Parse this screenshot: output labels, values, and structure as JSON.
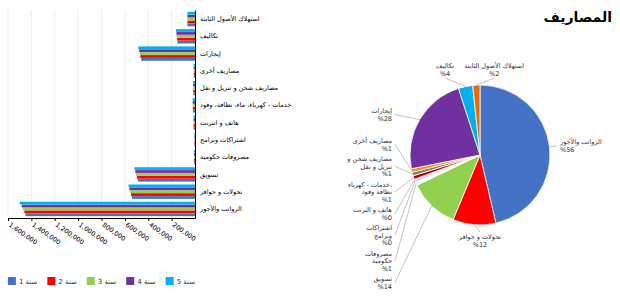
{
  "chart_data": [
    {
      "type": "bar",
      "orientation": "horizontal",
      "categories": [
        "الرواتب والأجور",
        "تحولات و حوافز",
        "تسويق",
        "مصروفات حكومية",
        "اشتراكات وبرامج",
        "هاتف و انترنت",
        "خدمات - كهرباء، ماء، نظافة، وقود",
        "مصاريف شحن و تنزيل و نقل",
        "مصاريف أخرى",
        "إيجارات",
        "تكاليف",
        "استهلاك الأصول الثابتة"
      ],
      "series": [
        {
          "name": "سنة 1",
          "color": "#4472c4",
          "values": [
            1450000,
            540000,
            490000,
            7500,
            4500,
            12000,
            18000,
            14000,
            10000,
            460000,
            150000,
            65000
          ]
        },
        {
          "name": "سنة 2",
          "color": "#ff0000",
          "values": [
            1460000,
            548000,
            497000,
            7700,
            4600,
            12200,
            18500,
            14500,
            10500,
            467000,
            153000,
            65000
          ]
        },
        {
          "name": "سنة 3",
          "color": "#92d050",
          "values": [
            1472000,
            556000,
            504000,
            7900,
            4700,
            12400,
            19000,
            15000,
            11000,
            473000,
            156000,
            65000
          ]
        },
        {
          "name": "سنة 4",
          "color": "#7030a0",
          "values": [
            1483000,
            562000,
            511000,
            8100,
            4800,
            12600,
            19500,
            15500,
            11500,
            478000,
            159000,
            65000
          ]
        },
        {
          "name": "سنة 5",
          "color": "#00b0f0",
          "values": [
            1500000,
            568000,
            518000,
            8300,
            4900,
            12800,
            20000,
            16000,
            12000,
            485000,
            162000,
            65000
          ]
        }
      ],
      "xlim": [
        0,
        1600000
      ],
      "xticks": [
        {
          "value": 1600000,
          "label": "1,600,000"
        },
        {
          "value": 1400000,
          "label": "1,400,000"
        },
        {
          "value": 1200000,
          "label": "1,200,000"
        },
        {
          "value": 1000000,
          "label": "1,000,000"
        },
        {
          "value": 800000,
          "label": "800,000"
        },
        {
          "value": 600000,
          "label": "600,000"
        },
        {
          "value": 400000,
          "label": "400,000"
        },
        {
          "value": 200000,
          "label": "200,000"
        }
      ],
      "grid": true,
      "legend": "bottom"
    },
    {
      "type": "pie",
      "title": "المصاريف",
      "categories": [
        "الرواتب والأجور",
        "تحولات و حوافز",
        "تسويق",
        "مصروفات\nحكومية",
        "اشتراكات\nوبرامج",
        "هاتف و الترنت",
        "خدمات - كهرباء،\nنظافة وقود",
        "مصاريف شحن و\nتنزيل و نقل",
        "مصاريف أخرى",
        "إيجارات",
        "تكاليف",
        "استهلاك الأصول الثابتة"
      ],
      "values": [
        56,
        12,
        14,
        1,
        0.5,
        0.3,
        1,
        1,
        1,
        28,
        4,
        2
      ],
      "value_labels": [
        "%56",
        "%12",
        "%14",
        "%1",
        "%0",
        "%0",
        "%1",
        "%1",
        "%1",
        "%28",
        "%4",
        "%2"
      ],
      "data_labels": true,
      "colors": [
        "#4472c4",
        "#ff0000",
        "#92d050",
        "#ffffff",
        "#c0c0c0",
        "#8064a2",
        "#c00000",
        "#7f7f7f",
        "#ff8c00",
        "#7030a0",
        "#00b0f0",
        "#e36c09"
      ]
    }
  ]
}
